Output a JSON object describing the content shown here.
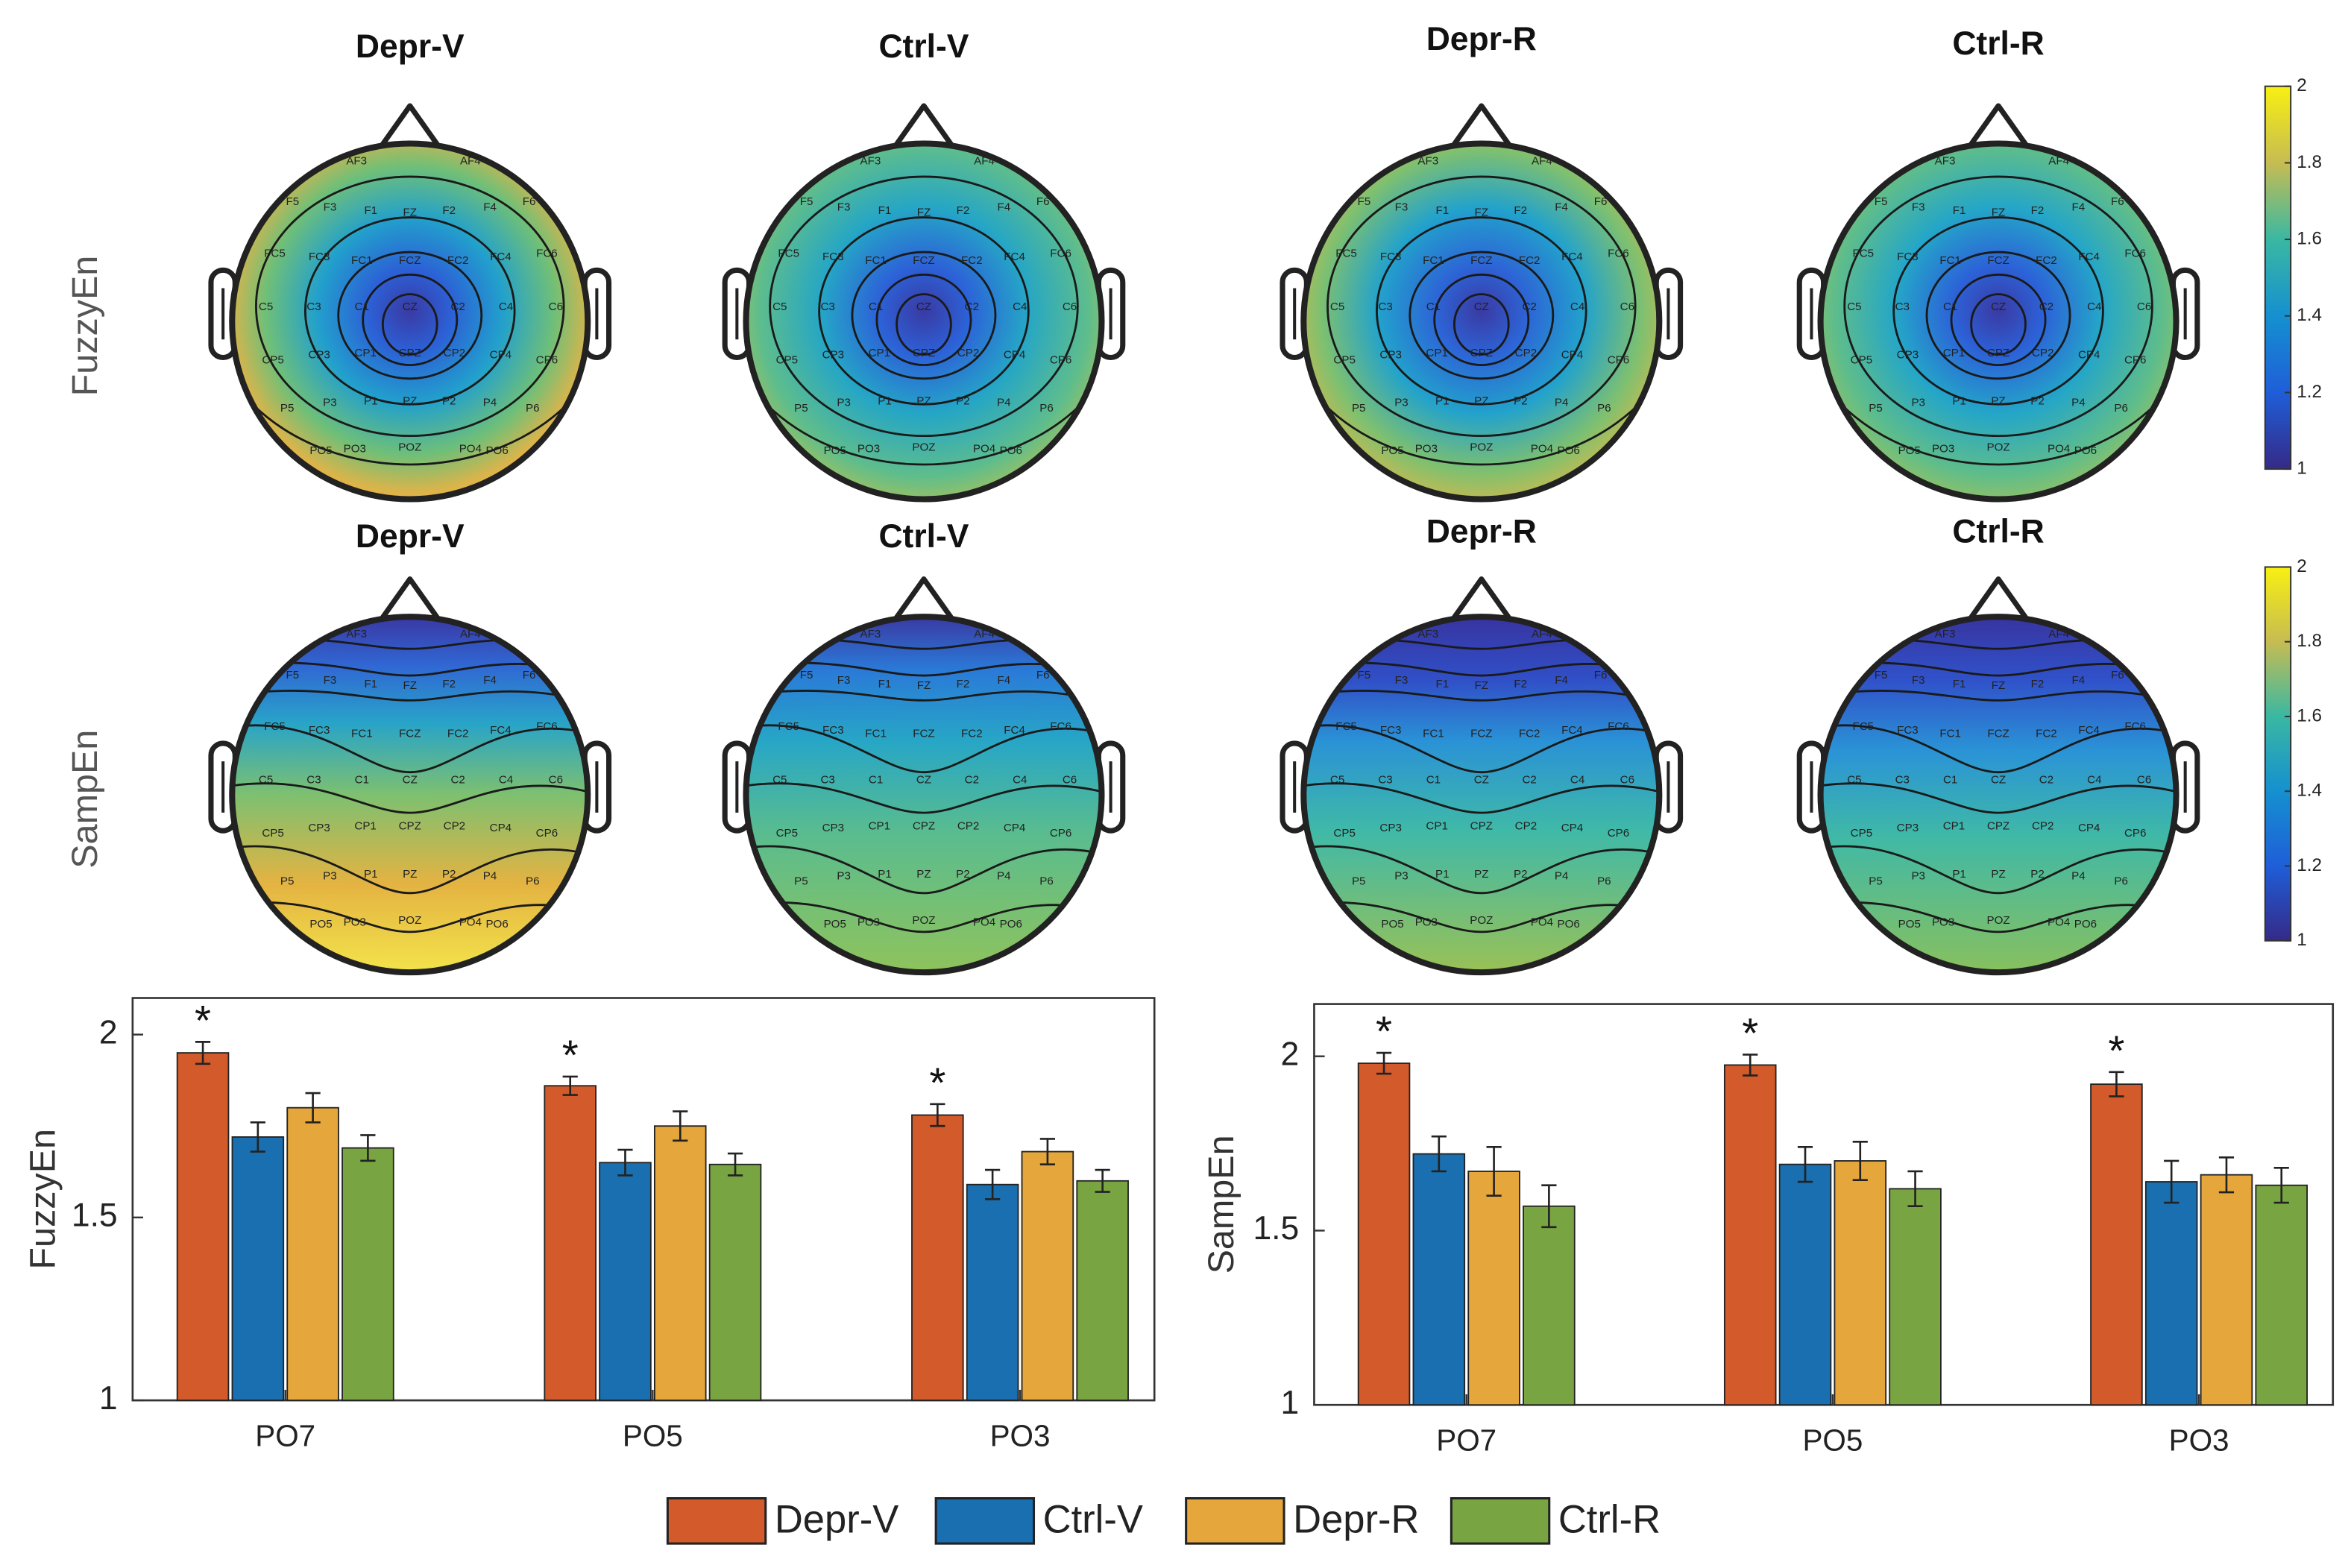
{
  "topomaps": {
    "electrodes": [
      "AF3",
      "AF4",
      "F5",
      "F3",
      "F1",
      "FZ",
      "F2",
      "F4",
      "F6",
      "FC5",
      "FC3",
      "FC1",
      "FCZ",
      "FC2",
      "FC4",
      "FC6",
      "C5",
      "C3",
      "C1",
      "CZ",
      "C2",
      "C4",
      "C6",
      "CP5",
      "CP3",
      "CP1",
      "CPZ",
      "CP2",
      "CP4",
      "CP6",
      "P5",
      "P3",
      "P1",
      "PZ",
      "P2",
      "P4",
      "P6",
      "PO5",
      "PO3",
      "POZ",
      "PO4",
      "PO6"
    ],
    "colorbar": {
      "lim": [
        1,
        2
      ],
      "ticks": [
        1,
        1.2,
        1.4,
        1.6,
        1.8,
        2
      ]
    },
    "rows": [
      {
        "label": "FuzzyEn",
        "titles": [
          "Depr-V",
          "Ctrl-V",
          "Depr-R",
          "Ctrl-R"
        ]
      },
      {
        "label": "SampEn",
        "titles": [
          "Depr-V",
          "Ctrl-V",
          "Depr-R",
          "Ctrl-R"
        ]
      }
    ]
  },
  "chart_data": [
    {
      "type": "bar",
      "ylabel": "FuzzyEn",
      "categories": [
        "PO7",
        "PO5",
        "PO3"
      ],
      "ylim": [
        1,
        2.1
      ],
      "yticks": [
        1,
        1.5,
        2
      ],
      "annotations": [
        "*",
        "*",
        "*"
      ],
      "series": [
        {
          "name": "Depr-V",
          "color": "#d35a2a",
          "values": [
            1.95,
            1.86,
            1.78
          ],
          "errors": [
            0.03,
            0.025,
            0.03
          ]
        },
        {
          "name": "Ctrl-V",
          "color": "#1a6fb0",
          "values": [
            1.72,
            1.65,
            1.59
          ],
          "errors": [
            0.04,
            0.035,
            0.04
          ]
        },
        {
          "name": "Depr-R",
          "color": "#e5a63b",
          "values": [
            1.8,
            1.75,
            1.68
          ],
          "errors": [
            0.04,
            0.04,
            0.035
          ]
        },
        {
          "name": "Ctrl-R",
          "color": "#78a541",
          "values": [
            1.69,
            1.645,
            1.6
          ],
          "errors": [
            0.035,
            0.03,
            0.03
          ]
        }
      ]
    },
    {
      "type": "bar",
      "ylabel": "SampEn",
      "categories": [
        "PO7",
        "PO5",
        "PO3"
      ],
      "ylim": [
        1,
        2.15
      ],
      "yticks": [
        1,
        1.5,
        2
      ],
      "annotations": [
        "*",
        "*",
        "*"
      ],
      "series": [
        {
          "name": "Depr-V",
          "color": "#d35a2a",
          "values": [
            1.98,
            1.975,
            1.92
          ],
          "errors": [
            0.03,
            0.03,
            0.035
          ]
        },
        {
          "name": "Ctrl-V",
          "color": "#1a6fb0",
          "values": [
            1.72,
            1.69,
            1.64
          ],
          "errors": [
            0.05,
            0.05,
            0.06
          ]
        },
        {
          "name": "Depr-R",
          "color": "#e5a63b",
          "values": [
            1.67,
            1.7,
            1.66
          ],
          "errors": [
            0.07,
            0.055,
            0.05
          ]
        },
        {
          "name": "Ctrl-R",
          "color": "#78a541",
          "values": [
            1.57,
            1.62,
            1.63
          ],
          "errors": [
            0.06,
            0.05,
            0.05
          ]
        }
      ]
    }
  ]
}
